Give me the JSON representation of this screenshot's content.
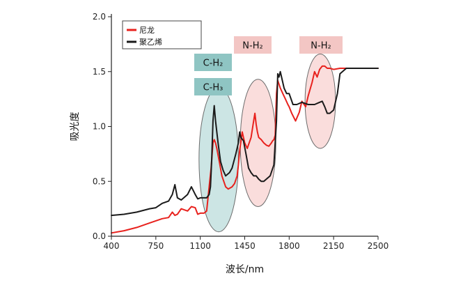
{
  "chart_data": {
    "type": "line",
    "title": "",
    "xlabel": "波长/nm",
    "ylabel": "吸光度",
    "xlim": [
      400,
      2500
    ],
    "ylim": [
      0,
      2.0
    ],
    "x_ticks": [
      400,
      750,
      1100,
      1450,
      1800,
      2150,
      2500
    ],
    "x_tick_labels": [
      "400",
      "750",
      "1100",
      "1450",
      "1800",
      "2150",
      "2500"
    ],
    "y_ticks": [
      0,
      0.5,
      1.0,
      1.5,
      2.0
    ],
    "y_tick_labels": [
      "0.0",
      "0.5",
      "1.0",
      "1.5",
      "2.0"
    ],
    "grid": false,
    "legend_position": "top-left",
    "series": [
      {
        "name": "尼龙",
        "color": "#e8211d",
        "x": [
          400,
          500,
          600,
          700,
          800,
          850,
          880,
          900,
          920,
          950,
          1000,
          1030,
          1060,
          1080,
          1100,
          1130,
          1150,
          1170,
          1185,
          1200,
          1210,
          1220,
          1230,
          1250,
          1270,
          1300,
          1320,
          1350,
          1370,
          1390,
          1400,
          1410,
          1430,
          1450,
          1470,
          1500,
          1520,
          1530,
          1540,
          1550,
          1560,
          1580,
          1600,
          1620,
          1640,
          1660,
          1670,
          1680,
          1690,
          1700,
          1710,
          1730,
          1750,
          1770,
          1790,
          1800,
          1820,
          1850,
          1880,
          1900,
          1930,
          1950,
          1980,
          2000,
          2020,
          2040,
          2060,
          2080,
          2100,
          2120,
          2150,
          2200,
          2300,
          2400,
          2500
        ],
        "y": [
          0.03,
          0.05,
          0.08,
          0.12,
          0.16,
          0.17,
          0.22,
          0.19,
          0.2,
          0.25,
          0.23,
          0.27,
          0.26,
          0.2,
          0.21,
          0.21,
          0.23,
          0.45,
          0.62,
          0.85,
          0.88,
          0.85,
          0.8,
          0.68,
          0.55,
          0.45,
          0.43,
          0.45,
          0.48,
          0.55,
          0.65,
          0.78,
          0.95,
          0.85,
          0.8,
          0.9,
          1.05,
          1.12,
          1.02,
          0.95,
          0.9,
          0.88,
          0.85,
          0.83,
          0.82,
          0.85,
          0.87,
          0.88,
          0.92,
          1.3,
          1.42,
          1.35,
          1.3,
          1.25,
          1.2,
          1.18,
          1.12,
          1.05,
          1.13,
          1.23,
          1.18,
          1.28,
          1.4,
          1.5,
          1.45,
          1.52,
          1.55,
          1.55,
          1.53,
          1.53,
          1.52,
          1.53,
          1.53,
          1.53,
          1.53
        ]
      },
      {
        "name": "聚乙烯",
        "color": "#1a1a1a",
        "x": [
          400,
          500,
          600,
          700,
          750,
          800,
          850,
          880,
          900,
          920,
          950,
          1000,
          1030,
          1060,
          1080,
          1100,
          1130,
          1150,
          1170,
          1180,
          1190,
          1200,
          1210,
          1220,
          1240,
          1260,
          1280,
          1300,
          1330,
          1350,
          1380,
          1400,
          1410,
          1420,
          1440,
          1460,
          1480,
          1500,
          1520,
          1540,
          1560,
          1580,
          1600,
          1620,
          1650,
          1680,
          1700,
          1710,
          1720,
          1730,
          1740,
          1760,
          1780,
          1800,
          1830,
          1860,
          1900,
          1950,
          2000,
          2040,
          2060,
          2080,
          2100,
          2120,
          2150,
          2180,
          2200,
          2250,
          2300,
          2400,
          2500
        ],
        "y": [
          0.19,
          0.2,
          0.22,
          0.25,
          0.26,
          0.3,
          0.32,
          0.38,
          0.47,
          0.35,
          0.33,
          0.38,
          0.45,
          0.38,
          0.34,
          0.35,
          0.35,
          0.35,
          0.38,
          0.45,
          0.7,
          1.05,
          1.19,
          1.05,
          0.85,
          0.68,
          0.6,
          0.55,
          0.58,
          0.62,
          0.75,
          0.85,
          0.95,
          0.9,
          0.87,
          0.75,
          0.62,
          0.58,
          0.55,
          0.55,
          0.52,
          0.5,
          0.5,
          0.52,
          0.55,
          0.65,
          1.05,
          1.48,
          1.45,
          1.5,
          1.45,
          1.35,
          1.3,
          1.3,
          1.2,
          1.2,
          1.22,
          1.2,
          1.2,
          1.22,
          1.23,
          1.18,
          1.12,
          1.12,
          1.15,
          1.3,
          1.48,
          1.53,
          1.53,
          1.53,
          1.53
        ]
      }
    ],
    "regions": [
      {
        "id": "ch",
        "cx": 1245,
        "cy": 0.7,
        "rx": 155,
        "ry": 0.66,
        "color": "#8fc5c3"
      },
      {
        "id": "nh1",
        "cx": 1555,
        "cy": 0.85,
        "rx": 140,
        "ry": 0.58,
        "color": "#f3b4b1"
      },
      {
        "id": "nh2",
        "cx": 2045,
        "cy": 1.23,
        "rx": 120,
        "ry": 0.43,
        "color": "#f3b4b1"
      }
    ],
    "annotations": [
      {
        "id": "ch2",
        "text": "C-H₂",
        "color": "#8fc5c3"
      },
      {
        "id": "ch3",
        "text": "C-H₃",
        "color": "#8fc5c3"
      },
      {
        "id": "nh2a",
        "text": "N-H₂",
        "color": "#f3c6c4"
      },
      {
        "id": "nh2b",
        "text": "N-H₂",
        "color": "#f3c6c4"
      }
    ]
  }
}
